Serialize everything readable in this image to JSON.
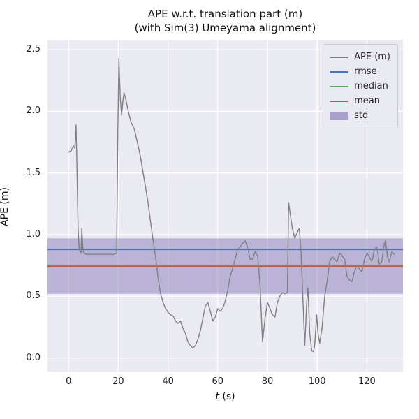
{
  "title_line1": "APE w.r.t. translation part (m)",
  "title_line2": "(with Sim(3) Umeyama alignment)",
  "chart_data": {
    "type": "line",
    "title": "APE w.r.t. translation part (m)\n(with Sim(3) Umeyama alignment)",
    "xlabel": "t (s)",
    "xlabel_parts": [
      "t",
      " (s)"
    ],
    "ylabel": "APE (m)",
    "xlim": [
      -8.5,
      134.5
    ],
    "ylim": [
      -0.11,
      2.58
    ],
    "grid": true,
    "legend_position": "upper right",
    "xticks": [
      {
        "v": 0,
        "label": "0"
      },
      {
        "v": 20,
        "label": "20"
      },
      {
        "v": 40,
        "label": "40"
      },
      {
        "v": 60,
        "label": "60"
      },
      {
        "v": 80,
        "label": "80"
      },
      {
        "v": 100,
        "label": "100"
      },
      {
        "v": 120,
        "label": "120"
      }
    ],
    "yticks": [
      {
        "v": 0.0,
        "label": "0.0"
      },
      {
        "v": 0.5,
        "label": "0.5"
      },
      {
        "v": 1.0,
        "label": "1.0"
      },
      {
        "v": 1.5,
        "label": "1.5"
      },
      {
        "v": 2.0,
        "label": "2.0"
      },
      {
        "v": 2.5,
        "label": "2.5"
      }
    ],
    "stats": {
      "rmse": 0.88,
      "median": 0.75,
      "mean": 0.74,
      "std_band": [
        0.52,
        0.97
      ]
    },
    "colors": {
      "ape": "#808080",
      "rmse": "#4C72B0",
      "median": "#55A868",
      "mean": "#C44E52",
      "std": "#8172B2",
      "std_alpha": 0.45,
      "plot_bg": "#EAEAF2",
      "grid": "#FFFFFF"
    },
    "legend": [
      {
        "label": "APE (m)",
        "type": "line",
        "color_key": "ape"
      },
      {
        "label": "rmse",
        "type": "line",
        "color_key": "rmse"
      },
      {
        "label": "median",
        "type": "line",
        "color_key": "median"
      },
      {
        "label": "mean",
        "type": "line",
        "color_key": "mean"
      },
      {
        "label": "std",
        "type": "band",
        "color_key": "std"
      }
    ],
    "series": [
      {
        "name": "APE (m)",
        "points": [
          [
            0,
            1.67
          ],
          [
            1,
            1.68
          ],
          [
            2,
            1.72
          ],
          [
            2.5,
            1.7
          ],
          [
            3,
            1.89
          ],
          [
            3.3,
            1.6
          ],
          [
            3.8,
            1.05
          ],
          [
            4.3,
            0.87
          ],
          [
            5,
            0.85
          ],
          [
            5.3,
            1.05
          ],
          [
            5.8,
            0.87
          ],
          [
            6.2,
            0.85
          ],
          [
            7,
            0.84
          ],
          [
            9,
            0.84
          ],
          [
            12,
            0.84
          ],
          [
            15,
            0.84
          ],
          [
            18,
            0.84
          ],
          [
            19.3,
            0.85
          ],
          [
            19.8,
            1.8
          ],
          [
            20.2,
            2.43
          ],
          [
            20.8,
            2.1
          ],
          [
            21.3,
            1.97
          ],
          [
            21.8,
            2.08
          ],
          [
            22.3,
            2.15
          ],
          [
            23,
            2.1
          ],
          [
            24,
            2.0
          ],
          [
            25,
            1.92
          ],
          [
            26.5,
            1.85
          ],
          [
            28,
            1.72
          ],
          [
            29,
            1.62
          ],
          [
            30,
            1.5
          ],
          [
            31,
            1.38
          ],
          [
            32,
            1.25
          ],
          [
            33,
            1.1
          ],
          [
            34,
            0.95
          ],
          [
            35,
            0.82
          ],
          [
            36,
            0.65
          ],
          [
            37,
            0.52
          ],
          [
            38,
            0.45
          ],
          [
            39,
            0.4
          ],
          [
            40,
            0.37
          ],
          [
            41,
            0.35
          ],
          [
            42,
            0.34
          ],
          [
            43,
            0.3
          ],
          [
            44,
            0.28
          ],
          [
            45,
            0.3
          ],
          [
            46,
            0.24
          ],
          [
            47,
            0.2
          ],
          [
            48,
            0.13
          ],
          [
            49,
            0.1
          ],
          [
            50,
            0.08
          ],
          [
            51,
            0.1
          ],
          [
            52,
            0.15
          ],
          [
            53,
            0.22
          ],
          [
            54,
            0.32
          ],
          [
            55,
            0.42
          ],
          [
            56,
            0.45
          ],
          [
            57,
            0.38
          ],
          [
            58,
            0.3
          ],
          [
            59,
            0.33
          ],
          [
            60,
            0.4
          ],
          [
            61,
            0.38
          ],
          [
            62,
            0.4
          ],
          [
            63,
            0.46
          ],
          [
            64,
            0.55
          ],
          [
            65,
            0.66
          ],
          [
            66,
            0.73
          ],
          [
            67,
            0.8
          ],
          [
            68,
            0.88
          ],
          [
            69,
            0.9
          ],
          [
            70,
            0.93
          ],
          [
            71,
            0.95
          ],
          [
            72,
            0.9
          ],
          [
            73,
            0.8
          ],
          [
            74,
            0.8
          ],
          [
            75,
            0.86
          ],
          [
            76,
            0.83
          ],
          [
            77,
            0.6
          ],
          [
            78,
            0.13
          ],
          [
            79,
            0.32
          ],
          [
            80,
            0.45
          ],
          [
            81,
            0.4
          ],
          [
            82,
            0.35
          ],
          [
            83,
            0.33
          ],
          [
            84,
            0.45
          ],
          [
            85,
            0.5
          ],
          [
            86,
            0.53
          ],
          [
            87,
            0.52
          ],
          [
            88,
            0.53
          ],
          [
            88.5,
            1.26
          ],
          [
            89.5,
            1.12
          ],
          [
            90,
            1.05
          ],
          [
            91,
            0.97
          ],
          [
            92,
            1.02
          ],
          [
            92.8,
            1.05
          ],
          [
            93.5,
            0.85
          ],
          [
            94.2,
            0.5
          ],
          [
            95,
            0.1
          ],
          [
            95.8,
            0.45
          ],
          [
            96.3,
            0.57
          ],
          [
            97,
            0.2
          ],
          [
            97.8,
            0.06
          ],
          [
            98.5,
            0.05
          ],
          [
            99,
            0.1
          ],
          [
            99.8,
            0.35
          ],
          [
            100.3,
            0.2
          ],
          [
            101,
            0.12
          ],
          [
            102,
            0.25
          ],
          [
            103,
            0.5
          ],
          [
            104,
            0.62
          ],
          [
            105,
            0.78
          ],
          [
            106,
            0.82
          ],
          [
            107,
            0.8
          ],
          [
            108,
            0.78
          ],
          [
            109,
            0.85
          ],
          [
            110,
            0.83
          ],
          [
            111,
            0.8
          ],
          [
            112,
            0.66
          ],
          [
            113,
            0.63
          ],
          [
            114,
            0.62
          ],
          [
            115,
            0.7
          ],
          [
            116,
            0.75
          ],
          [
            117,
            0.72
          ],
          [
            118,
            0.7
          ],
          [
            119,
            0.8
          ],
          [
            120,
            0.85
          ],
          [
            121,
            0.82
          ],
          [
            122,
            0.78
          ],
          [
            123,
            0.88
          ],
          [
            124,
            0.9
          ],
          [
            125,
            0.76
          ],
          [
            126,
            0.78
          ],
          [
            127,
            0.93
          ],
          [
            127.5,
            0.95
          ],
          [
            128.3,
            0.82
          ],
          [
            129,
            0.78
          ],
          [
            130,
            0.86
          ],
          [
            131,
            0.84
          ]
        ]
      }
    ]
  }
}
